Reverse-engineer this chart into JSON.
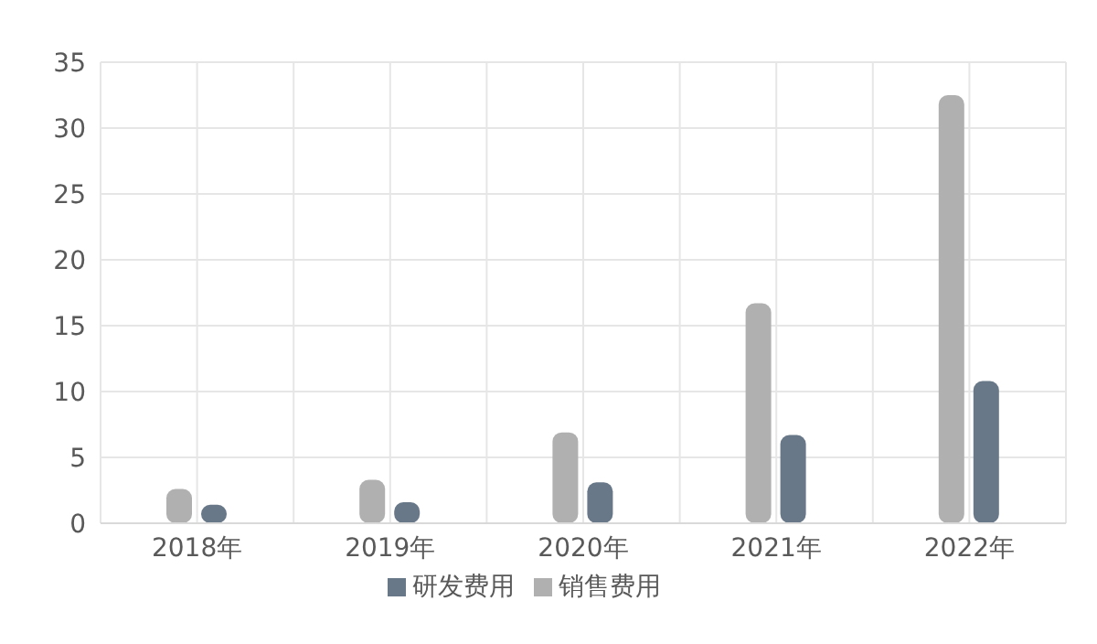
{
  "chart_data": {
    "type": "bar",
    "categories": [
      "2018年",
      "2019年",
      "2020年",
      "2021年",
      "2022年"
    ],
    "series": [
      {
        "name": "销售费用",
        "color": "#b0b0b0",
        "values": [
          2.6,
          3.3,
          6.9,
          16.7,
          32.5
        ]
      },
      {
        "name": "研发费用",
        "color": "#697888",
        "values": [
          1.4,
          1.6,
          3.1,
          6.7,
          10.8
        ]
      }
    ],
    "ylim": [
      0,
      35
    ],
    "yticks": [
      0,
      5,
      10,
      15,
      20,
      25,
      30,
      35
    ],
    "grid": true,
    "legend": "bottom"
  }
}
